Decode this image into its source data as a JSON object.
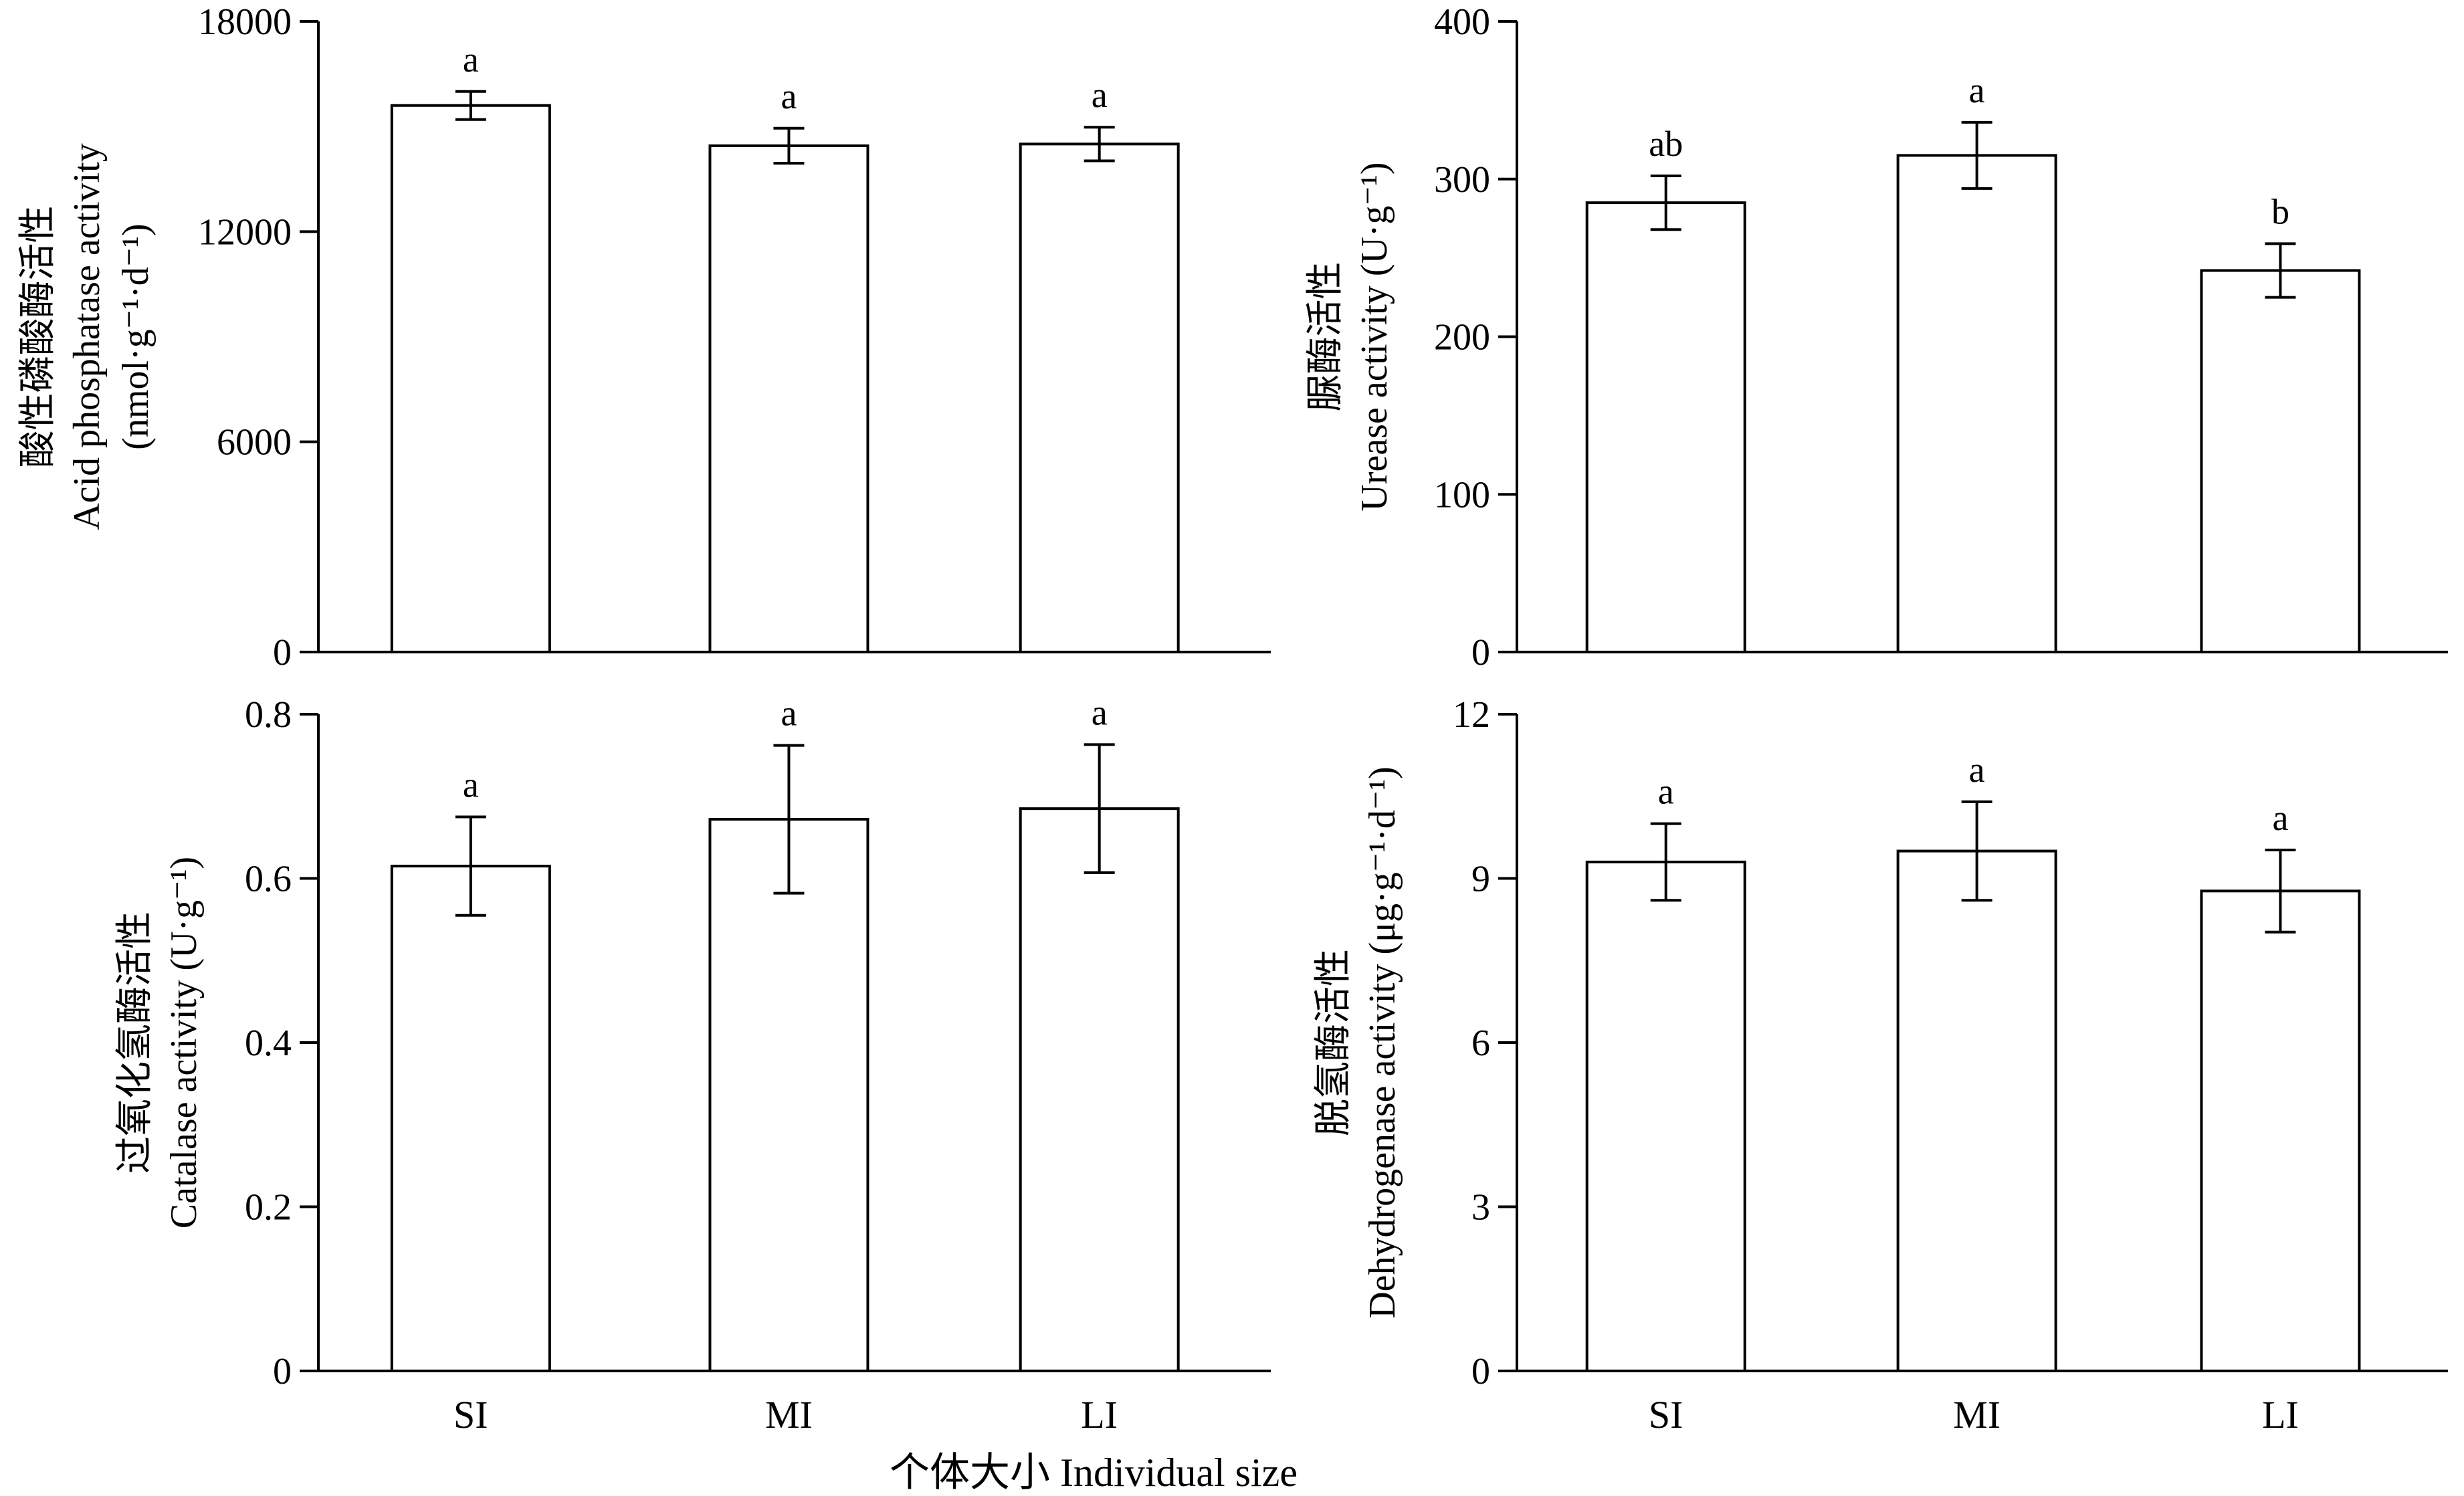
{
  "figure": {
    "xlabel": "个体大小 Individual size"
  },
  "chart_data": [
    {
      "type": "bar",
      "panel": "top-left",
      "categories": [
        "SI",
        "MI",
        "LI"
      ],
      "values": [
        15600,
        14450,
        14500
      ],
      "errors": [
        400,
        500,
        480
      ],
      "significance": [
        "a",
        "a",
        "a"
      ],
      "ylabel_lines": [
        "酸性磷酸酶活性",
        "Acid phosphatase activity",
        "(nmol·g⁻¹·d⁻¹)"
      ],
      "ylim": [
        0,
        18000
      ],
      "yticks": [
        0,
        6000,
        12000,
        18000
      ],
      "ytick_labels": [
        "0",
        "6000",
        "12000",
        "18000"
      ],
      "show_xtick_labels": false
    },
    {
      "type": "bar",
      "panel": "top-right",
      "categories": [
        "SI",
        "MI",
        "LI"
      ],
      "values": [
        285,
        315,
        242
      ],
      "errors": [
        17,
        21,
        17
      ],
      "significance": [
        "ab",
        "a",
        "b"
      ],
      "ylabel_lines": [
        "脲酶活性",
        "Urease activity (U·g⁻¹)"
      ],
      "ylim": [
        0,
        400
      ],
      "yticks": [
        0,
        100,
        200,
        300,
        400
      ],
      "ytick_labels": [
        "0",
        "100",
        "200",
        "300",
        "400"
      ],
      "show_xtick_labels": false
    },
    {
      "type": "bar",
      "panel": "bottom-left",
      "categories": [
        "SI",
        "MI",
        "LI"
      ],
      "values": [
        0.615,
        0.672,
        0.685
      ],
      "errors": [
        0.06,
        0.09,
        0.078
      ],
      "significance": [
        "a",
        "a",
        "a"
      ],
      "ylabel_lines": [
        "过氧化氢酶活性",
        "Catalase activity (U·g⁻¹)"
      ],
      "ylim": [
        0,
        0.8
      ],
      "yticks": [
        0,
        0.2,
        0.4,
        0.6,
        0.8
      ],
      "ytick_labels": [
        "0",
        "0.2",
        "0.4",
        "0.6",
        "0.8"
      ],
      "show_xtick_labels": true
    },
    {
      "type": "bar",
      "panel": "bottom-right",
      "categories": [
        "SI",
        "MI",
        "LI"
      ],
      "values": [
        9.3,
        9.5,
        8.77
      ],
      "errors": [
        0.7,
        0.9,
        0.75
      ],
      "significance": [
        "a",
        "a",
        "a"
      ],
      "ylabel_lines": [
        "脱氢酶活性",
        "Dehydrogenase activity (μg·g⁻¹·d⁻¹)"
      ],
      "ylim": [
        0,
        12
      ],
      "yticks": [
        0,
        3,
        6,
        9,
        12
      ],
      "ytick_labels": [
        "0",
        "3",
        "6",
        "9",
        "12"
      ],
      "show_xtick_labels": true
    }
  ]
}
